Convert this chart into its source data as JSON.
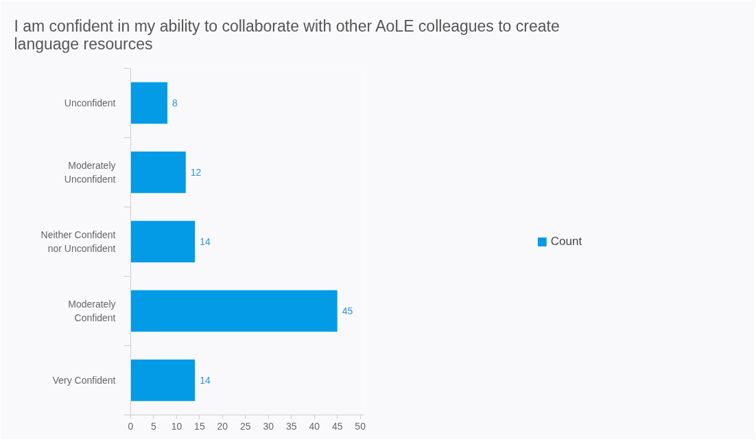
{
  "chart_data": {
    "type": "bar",
    "orientation": "horizontal",
    "title": "I am confident in my ability to collaborate with other AoLE colleagues to create language resources",
    "categories": [
      "Unconfident",
      "Moderately Unconfident",
      "Neither Confident nor Unconfident",
      "Moderately Confident",
      "Very Confident"
    ],
    "series": [
      {
        "name": "Count",
        "color": "#039be5",
        "values": [
          8,
          12,
          14,
          45,
          14
        ]
      }
    ],
    "xlim": [
      0,
      50.8
    ],
    "xticks": [
      0,
      5,
      10,
      15,
      20,
      25,
      30,
      35,
      40,
      45,
      50
    ],
    "data_labels": true,
    "legend": "right",
    "grid": false
  }
}
